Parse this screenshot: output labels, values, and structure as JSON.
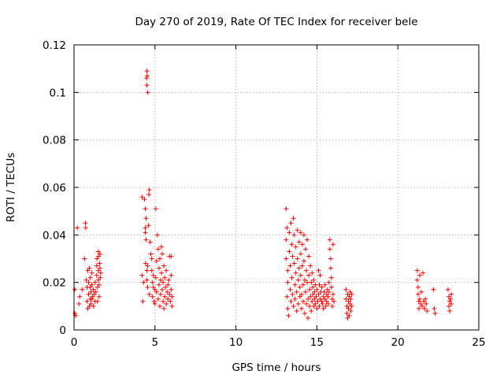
{
  "chart_data": {
    "type": "scatter",
    "title": "Day 270 of 2019, Rate Of TEC Index for receiver bele",
    "xlabel": "GPS time / hours",
    "ylabel": "ROTI / TECUs",
    "xlim": [
      0,
      25
    ],
    "ylim": [
      0,
      0.12
    ],
    "xticks": [
      "0",
      "5",
      "10",
      "15",
      "20",
      "25"
    ],
    "yticks": [
      "0",
      "0.02",
      "0.04",
      "0.06",
      "0.08",
      "0.1",
      "0.12"
    ],
    "grid": true,
    "marker": "+",
    "colors": {
      "points": "#ff0000",
      "grid": "#a0a0a0",
      "axes": "#000000"
    },
    "series": [
      {
        "points": [
          [
            0.05,
            0.017
          ],
          [
            0.05,
            0.007
          ],
          [
            0.1,
            0.006
          ],
          [
            0.2,
            0.043
          ],
          [
            0.3,
            0.011
          ],
          [
            0.35,
            0.014
          ],
          [
            0.5,
            0.017
          ],
          [
            0.65,
            0.03
          ],
          [
            0.7,
            0.045
          ],
          [
            0.72,
            0.043
          ],
          [
            0.75,
            0.021
          ],
          [
            0.8,
            0.018
          ],
          [
            0.8,
            0.012
          ],
          [
            0.85,
            0.009
          ],
          [
            0.85,
            0.025
          ],
          [
            0.9,
            0.015
          ],
          [
            0.9,
            0.02
          ],
          [
            0.95,
            0.026
          ],
          [
            0.95,
            0.01
          ],
          [
            1.0,
            0.013
          ],
          [
            1.0,
            0.018
          ],
          [
            1.0,
            0.022
          ],
          [
            1.05,
            0.011
          ],
          [
            1.05,
            0.016
          ],
          [
            1.1,
            0.019
          ],
          [
            1.1,
            0.024
          ],
          [
            1.1,
            0.013
          ],
          [
            1.15,
            0.014
          ],
          [
            1.2,
            0.017
          ],
          [
            1.2,
            0.01
          ],
          [
            1.25,
            0.015
          ],
          [
            1.3,
            0.02
          ],
          [
            1.3,
            0.012
          ],
          [
            1.35,
            0.016
          ],
          [
            1.4,
            0.023
          ],
          [
            1.4,
            0.027
          ],
          [
            1.42,
            0.03
          ],
          [
            1.45,
            0.018
          ],
          [
            1.45,
            0.012
          ],
          [
            1.5,
            0.021
          ],
          [
            1.5,
            0.025
          ],
          [
            1.5,
            0.033
          ],
          [
            1.52,
            0.031
          ],
          [
            1.55,
            0.019
          ],
          [
            1.55,
            0.014
          ],
          [
            1.58,
            0.028
          ],
          [
            1.6,
            0.026
          ],
          [
            1.6,
            0.032
          ],
          [
            1.62,
            0.022
          ],
          [
            1.65,
            0.024
          ],
          [
            4.2,
            0.056
          ],
          [
            4.2,
            0.023
          ],
          [
            4.25,
            0.012
          ],
          [
            4.3,
            0.02
          ],
          [
            4.35,
            0.055
          ],
          [
            4.4,
            0.051
          ],
          [
            4.45,
            0.047
          ],
          [
            4.4,
            0.043
          ],
          [
            4.5,
            0.109
          ],
          [
            4.52,
            0.107
          ],
          [
            4.48,
            0.106
          ],
          [
            4.5,
            0.103
          ],
          [
            4.55,
            0.1
          ],
          [
            4.4,
            0.041
          ],
          [
            4.45,
            0.038
          ],
          [
            4.42,
            0.028
          ],
          [
            4.5,
            0.025
          ],
          [
            4.5,
            0.021
          ],
          [
            4.55,
            0.018
          ],
          [
            4.55,
            0.027
          ],
          [
            4.6,
            0.044
          ],
          [
            4.62,
            0.057
          ],
          [
            4.65,
            0.059
          ],
          [
            4.65,
            0.015
          ],
          [
            4.7,
            0.037
          ],
          [
            4.75,
            0.032
          ],
          [
            4.8,
            0.03
          ],
          [
            4.8,
            0.025
          ],
          [
            4.85,
            0.02
          ],
          [
            4.85,
            0.014
          ],
          [
            4.9,
            0.018
          ],
          [
            4.9,
            0.023
          ],
          [
            4.95,
            0.012
          ],
          [
            5.0,
            0.017
          ],
          [
            5.0,
            0.011
          ],
          [
            5.05,
            0.051
          ],
          [
            5.05,
            0.022
          ],
          [
            5.1,
            0.016
          ],
          [
            5.1,
            0.029
          ],
          [
            5.15,
            0.04
          ],
          [
            5.2,
            0.034
          ],
          [
            5.2,
            0.013
          ],
          [
            5.25,
            0.019
          ],
          [
            5.25,
            0.026
          ],
          [
            5.3,
            0.03
          ],
          [
            5.3,
            0.01
          ],
          [
            5.35,
            0.021
          ],
          [
            5.35,
            0.015
          ],
          [
            5.4,
            0.035
          ],
          [
            5.4,
            0.024
          ],
          [
            5.45,
            0.032
          ],
          [
            5.45,
            0.017
          ],
          [
            5.5,
            0.012
          ],
          [
            5.5,
            0.02
          ],
          [
            5.55,
            0.027
          ],
          [
            5.55,
            0.009
          ],
          [
            5.6,
            0.014
          ],
          [
            5.6,
            0.022
          ],
          [
            5.65,
            0.018
          ],
          [
            5.7,
            0.025
          ],
          [
            5.7,
            0.011
          ],
          [
            5.75,
            0.016
          ],
          [
            5.8,
            0.013
          ],
          [
            5.8,
            0.019
          ],
          [
            5.85,
            0.021
          ],
          [
            5.9,
            0.015
          ],
          [
            5.9,
            0.031
          ],
          [
            5.95,
            0.012
          ],
          [
            6.0,
            0.017
          ],
          [
            6.0,
            0.031
          ],
          [
            6.0,
            0.023
          ],
          [
            6.05,
            0.01
          ],
          [
            6.05,
            0.014
          ],
          [
            13.1,
            0.051
          ],
          [
            13.15,
            0.043
          ],
          [
            13.1,
            0.038
          ],
          [
            13.1,
            0.03
          ],
          [
            13.2,
            0.025
          ],
          [
            13.2,
            0.02
          ],
          [
            13.15,
            0.014
          ],
          [
            13.2,
            0.009
          ],
          [
            13.25,
            0.006
          ],
          [
            13.3,
            0.041
          ],
          [
            13.3,
            0.033
          ],
          [
            13.35,
            0.027
          ],
          [
            13.35,
            0.017
          ],
          [
            13.4,
            0.012
          ],
          [
            13.4,
            0.045
          ],
          [
            13.45,
            0.036
          ],
          [
            13.45,
            0.022
          ],
          [
            13.5,
            0.031
          ],
          [
            13.5,
            0.015
          ],
          [
            13.55,
            0.01
          ],
          [
            13.55,
            0.047
          ],
          [
            13.6,
            0.04
          ],
          [
            13.6,
            0.028
          ],
          [
            13.65,
            0.019
          ],
          [
            13.65,
            0.013
          ],
          [
            13.7,
            0.035
          ],
          [
            13.7,
            0.024
          ],
          [
            13.75,
            0.008
          ],
          [
            13.75,
            0.016
          ],
          [
            13.8,
            0.042
          ],
          [
            13.8,
            0.03
          ],
          [
            13.85,
            0.021
          ],
          [
            13.85,
            0.011
          ],
          [
            13.9,
            0.037
          ],
          [
            13.9,
            0.026
          ],
          [
            13.95,
            0.014
          ],
          [
            13.95,
            0.018
          ],
          [
            14.0,
            0.041
          ],
          [
            14.0,
            0.032
          ],
          [
            14.0,
            0.023
          ],
          [
            14.05,
            0.009
          ],
          [
            14.05,
            0.015
          ],
          [
            14.1,
            0.036
          ],
          [
            14.1,
            0.027
          ],
          [
            14.15,
            0.019
          ],
          [
            14.15,
            0.012
          ],
          [
            14.2,
            0.04
          ],
          [
            14.2,
            0.029
          ],
          [
            14.25,
            0.021
          ],
          [
            14.25,
            0.007
          ],
          [
            14.3,
            0.034
          ],
          [
            14.3,
            0.016
          ],
          [
            14.35,
            0.025
          ],
          [
            14.35,
            0.011
          ],
          [
            14.4,
            0.038
          ],
          [
            14.4,
            0.02
          ],
          [
            14.45,
            0.013
          ],
          [
            14.45,
            0.005
          ],
          [
            14.5,
            0.031
          ],
          [
            14.5,
            0.023
          ],
          [
            14.55,
            0.017
          ],
          [
            14.55,
            0.01
          ],
          [
            14.6,
            0.027
          ],
          [
            14.6,
            0.014
          ],
          [
            14.65,
            0.02
          ],
          [
            14.65,
            0.008
          ],
          [
            14.7,
            0.024
          ],
          [
            14.7,
            0.012
          ],
          [
            14.75,
            0.018
          ],
          [
            14.75,
            0.015
          ],
          [
            14.8,
            0.021
          ],
          [
            14.8,
            0.01
          ],
          [
            14.85,
            0.016
          ],
          [
            14.85,
            0.013
          ],
          [
            14.9,
            0.019
          ],
          [
            14.9,
            0.011
          ],
          [
            14.95,
            0.014
          ],
          [
            15.0,
            0.017
          ],
          [
            15.0,
            0.009
          ],
          [
            15.05,
            0.012
          ],
          [
            15.1,
            0.025
          ],
          [
            15.1,
            0.015
          ],
          [
            15.15,
            0.019
          ],
          [
            15.15,
            0.01
          ],
          [
            15.2,
            0.023
          ],
          [
            15.2,
            0.013
          ],
          [
            15.25,
            0.016
          ],
          [
            15.3,
            0.012
          ],
          [
            15.3,
            0.018
          ],
          [
            15.35,
            0.011
          ],
          [
            15.4,
            0.014
          ],
          [
            15.4,
            0.009
          ],
          [
            15.45,
            0.016
          ],
          [
            15.5,
            0.013
          ],
          [
            15.5,
            0.019
          ],
          [
            15.55,
            0.01
          ],
          [
            15.6,
            0.015
          ],
          [
            15.6,
            0.012
          ],
          [
            15.65,
            0.017
          ],
          [
            15.7,
            0.011
          ],
          [
            15.7,
            0.014
          ],
          [
            15.75,
            0.02
          ],
          [
            15.75,
            0.016
          ],
          [
            15.8,
            0.038
          ],
          [
            15.8,
            0.034
          ],
          [
            15.85,
            0.03
          ],
          [
            15.85,
            0.026
          ],
          [
            15.9,
            0.022
          ],
          [
            15.9,
            0.018
          ],
          [
            15.95,
            0.013
          ],
          [
            15.95,
            0.01
          ],
          [
            16.0,
            0.036
          ],
          [
            16.0,
            0.015
          ],
          [
            16.05,
            0.012
          ],
          [
            16.8,
            0.017
          ],
          [
            16.8,
            0.013
          ],
          [
            16.85,
            0.01
          ],
          [
            16.85,
            0.007
          ],
          [
            16.9,
            0.015
          ],
          [
            16.9,
            0.005
          ],
          [
            16.95,
            0.012
          ],
          [
            16.95,
            0.009
          ],
          [
            17.0,
            0.014
          ],
          [
            17.0,
            0.006
          ],
          [
            17.05,
            0.011
          ],
          [
            17.05,
            0.016
          ],
          [
            17.1,
            0.013
          ],
          [
            17.1,
            0.008
          ],
          [
            17.15,
            0.01
          ],
          [
            17.15,
            0.015
          ],
          [
            21.2,
            0.025
          ],
          [
            21.2,
            0.021
          ],
          [
            21.25,
            0.018
          ],
          [
            21.25,
            0.015
          ],
          [
            21.3,
            0.012
          ],
          [
            21.3,
            0.009
          ],
          [
            21.35,
            0.023
          ],
          [
            21.35,
            0.013
          ],
          [
            21.4,
            0.011
          ],
          [
            21.45,
            0.016
          ],
          [
            21.5,
            0.01
          ],
          [
            21.55,
            0.024
          ],
          [
            21.6,
            0.012
          ],
          [
            21.65,
            0.009
          ],
          [
            21.7,
            0.013
          ],
          [
            21.75,
            0.011
          ],
          [
            21.8,
            0.008
          ],
          [
            22.2,
            0.017
          ],
          [
            22.25,
            0.009
          ],
          [
            22.3,
            0.007
          ],
          [
            23.1,
            0.017
          ],
          [
            23.15,
            0.014
          ],
          [
            23.15,
            0.01
          ],
          [
            23.2,
            0.012
          ],
          [
            23.2,
            0.008
          ],
          [
            23.25,
            0.013
          ],
          [
            23.3,
            0.011
          ],
          [
            23.3,
            0.015
          ]
        ]
      }
    ]
  }
}
